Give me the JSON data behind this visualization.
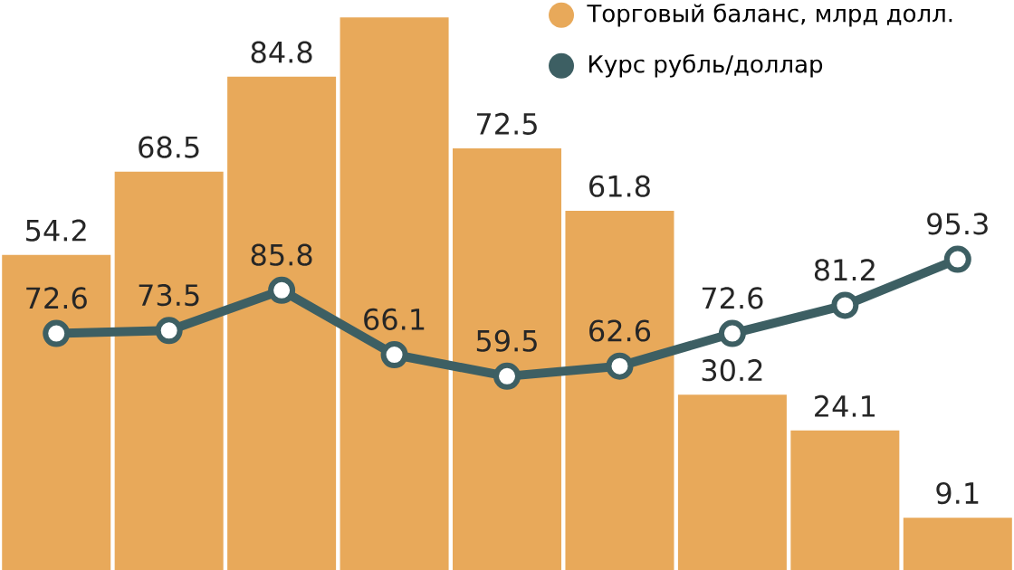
{
  "chart_data": [
    {
      "type": "bar",
      "categories": [
        null,
        null,
        null,
        null,
        null,
        null,
        null,
        null,
        null
      ],
      "legend": "top right",
      "marker": "none",
      "series": [
        {
          "name": "Торговый баланс, млрд долл.",
          "color": "#e8a95a",
          "values": [
            54.2,
            68.5,
            84.8,
            95,
            72.5,
            61.8,
            30.2,
            24.1,
            9.1
          ],
          "value_labels": [
            "54.2",
            "68.5",
            "84.8",
            null,
            "72.5",
            "61.8",
            "30.2",
            "24.1",
            "9.1"
          ]
        }
      ]
    },
    {
      "type": "line",
      "categories": [
        null,
        null,
        null,
        null,
        null,
        null,
        null,
        null,
        null
      ],
      "legend": "top right",
      "marker": "circle",
      "data_labels": true,
      "series": [
        {
          "name": "Курс рубль/доллар",
          "color": "#3d5f63",
          "values": [
            72.6,
            73.5,
            85.8,
            66.1,
            59.5,
            62.6,
            72.6,
            81.2,
            95.3
          ]
        }
      ]
    }
  ]
}
